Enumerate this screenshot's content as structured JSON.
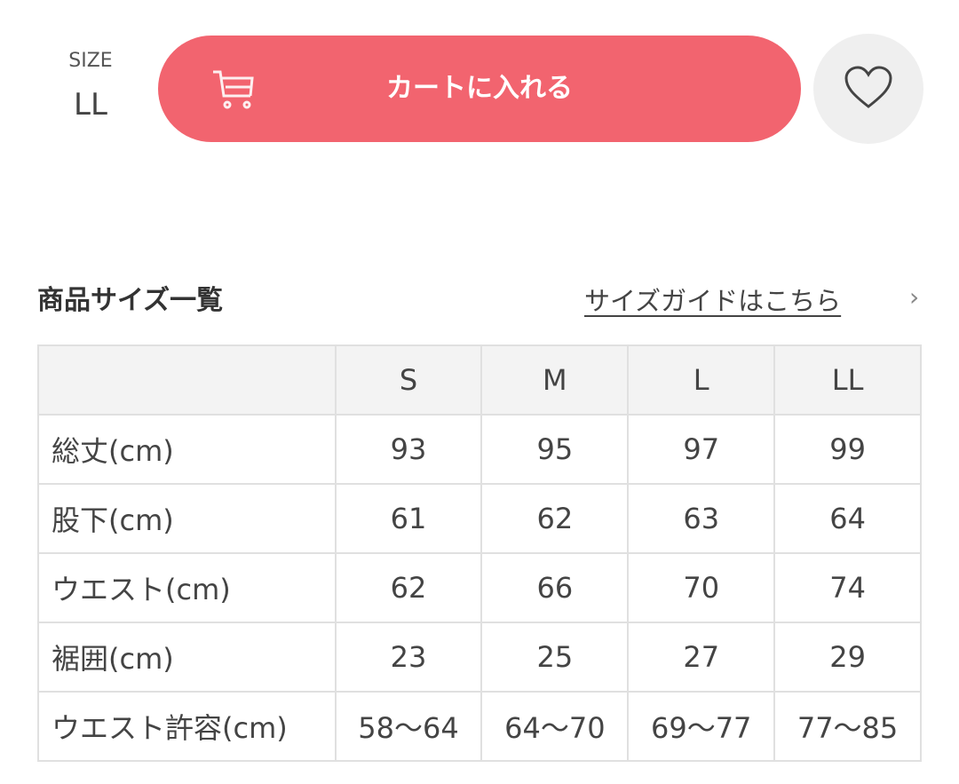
{
  "size": {
    "label": "SIZE",
    "value": "LL"
  },
  "cart_button": {
    "label": "カートに入れる",
    "color": "#f2646f",
    "icon": "cart-icon"
  },
  "favorite_button": {
    "icon": "heart-icon"
  },
  "size_table": {
    "title": "商品サイズ一覧",
    "guide_link": "サイズガイドはこちら",
    "guide_chevron": "›",
    "columns": [
      "S",
      "M",
      "L",
      "LL"
    ],
    "rows": [
      {
        "label": "総丈(cm)",
        "values": [
          "93",
          "95",
          "97",
          "99"
        ]
      },
      {
        "label": "股下(cm)",
        "values": [
          "61",
          "62",
          "63",
          "64"
        ]
      },
      {
        "label": "ウエスト(cm)",
        "values": [
          "62",
          "66",
          "70",
          "74"
        ]
      },
      {
        "label": "裾囲(cm)",
        "values": [
          "23",
          "25",
          "27",
          "29"
        ]
      },
      {
        "label": "ウエスト許容(cm)",
        "values": [
          "58〜64",
          "64〜70",
          "69〜77",
          "77〜85"
        ]
      }
    ]
  }
}
